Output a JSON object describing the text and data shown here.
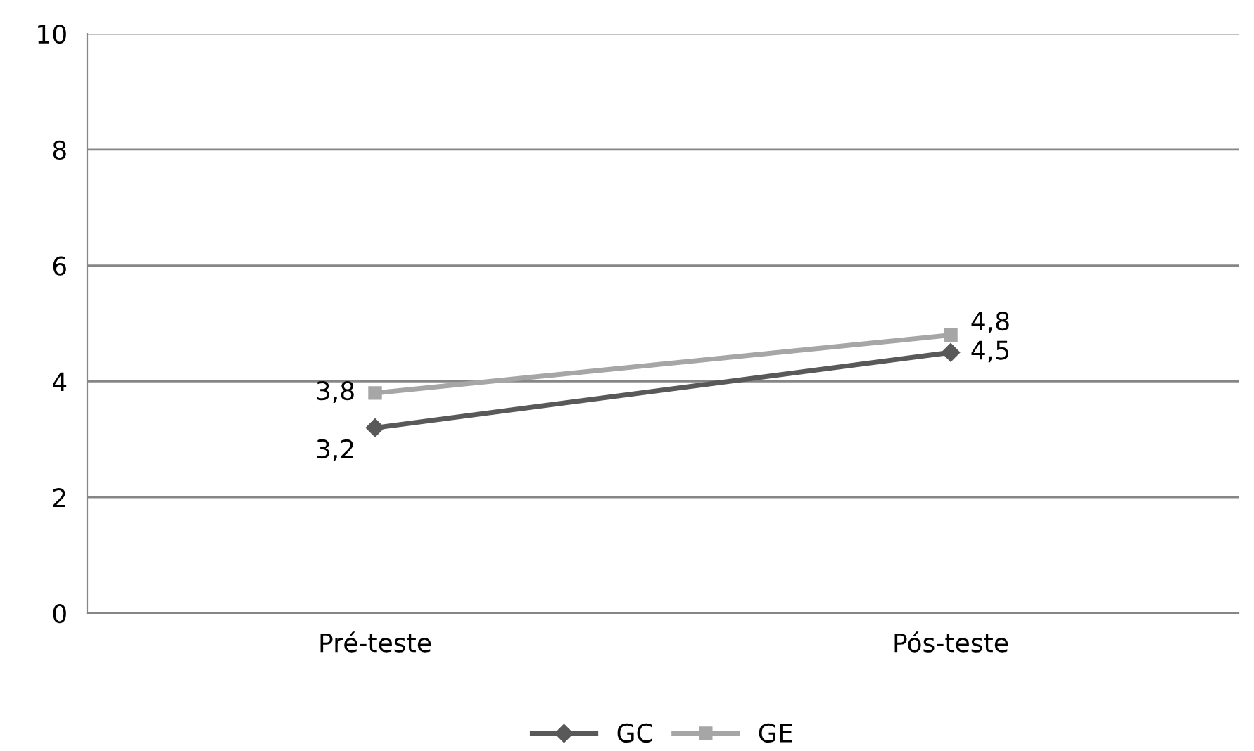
{
  "chart_data": {
    "type": "line",
    "categories": [
      "Pré-teste",
      "Pós-teste"
    ],
    "series": [
      {
        "name": "GC",
        "color": "#595959",
        "marker": "diamond",
        "values": [
          3.2,
          4.5
        ],
        "value_labels": [
          "3,2",
          "4,5"
        ]
      },
      {
        "name": "GE",
        "color": "#a6a6a6",
        "marker": "square",
        "values": [
          3.8,
          4.8
        ],
        "value_labels": [
          "3,8",
          "4,8"
        ]
      }
    ],
    "ylim": [
      0,
      10
    ],
    "yticks": [
      0,
      2,
      4,
      6,
      8,
      10
    ],
    "grid": "y",
    "legend": "bottom"
  }
}
